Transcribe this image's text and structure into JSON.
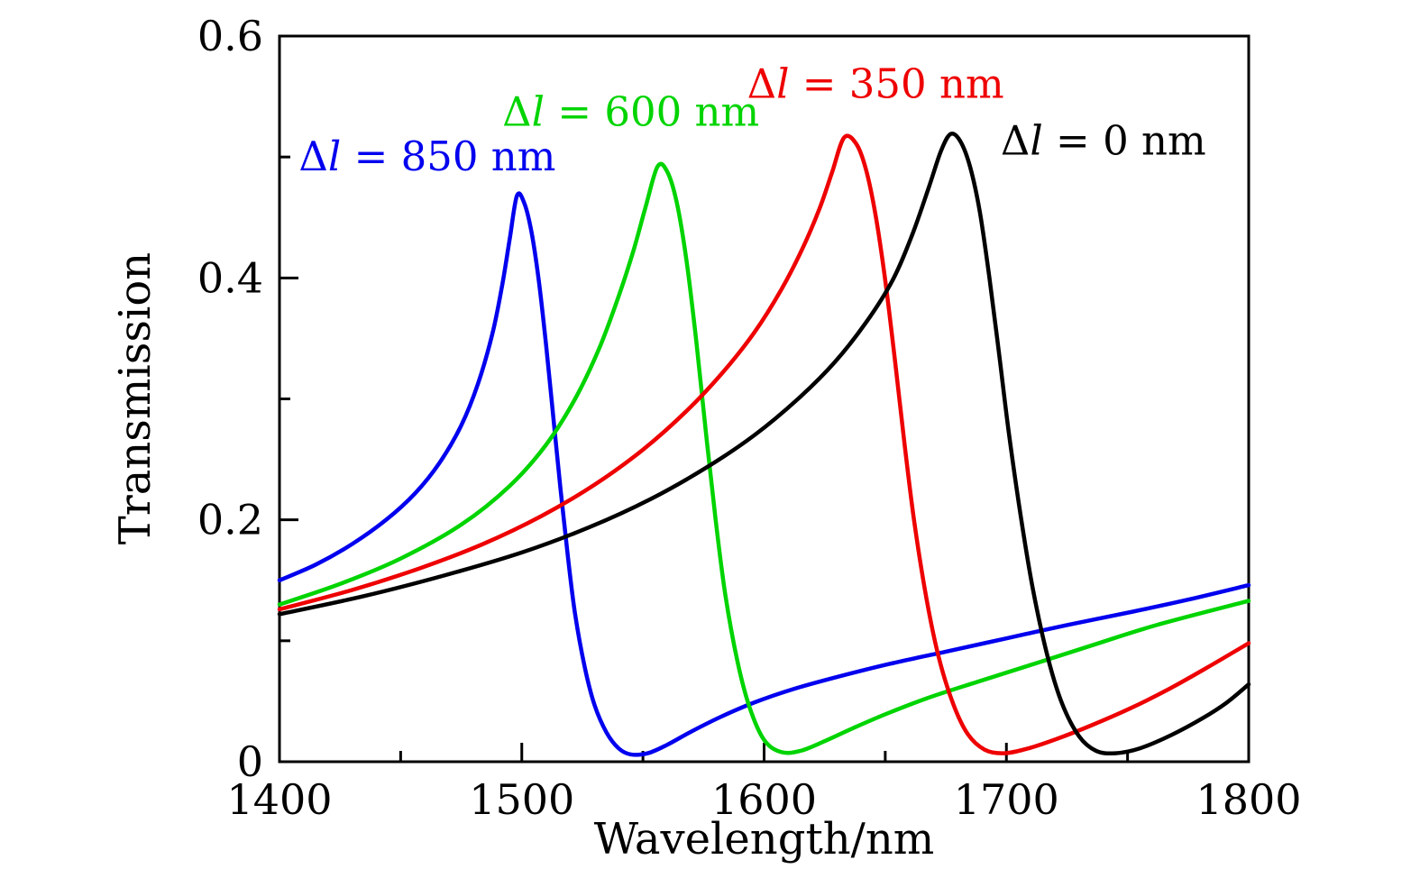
{
  "chart_data": {
    "type": "line",
    "title": "",
    "xlabel": "Wavelength/nm",
    "ylabel": "Transmission",
    "xlim": [
      1400,
      1800
    ],
    "ylim": [
      0,
      0.6
    ],
    "x_ticks": [
      1400,
      1500,
      1600,
      1700,
      1800
    ],
    "x_tick_labels": [
      "1400",
      "1500",
      "1600",
      "1700",
      "1800"
    ],
    "x_minor_ticks": [
      1450,
      1550,
      1650,
      1750
    ],
    "y_ticks": [
      0,
      0.2,
      0.4,
      0.6
    ],
    "y_tick_labels": [
      "0",
      "0.2",
      "0.4",
      "0.6"
    ],
    "y_minor_ticks": [
      0.1,
      0.3,
      0.5
    ],
    "grid": false,
    "frame": true,
    "legend_position": "inline-annotations",
    "axis_color": "#000000",
    "series": [
      {
        "name": "Δl = 850 nm",
        "color": "#0000ee",
        "label_x": 1461,
        "label_y": 0.5,
        "peak_nm": 1498,
        "dip_nm": 1545,
        "points": [
          [
            1400,
            0.15
          ],
          [
            1415,
            0.163
          ],
          [
            1430,
            0.18
          ],
          [
            1444,
            0.2
          ],
          [
            1456,
            0.222
          ],
          [
            1466,
            0.247
          ],
          [
            1475,
            0.278
          ],
          [
            1482,
            0.313
          ],
          [
            1488,
            0.355
          ],
          [
            1492,
            0.395
          ],
          [
            1495,
            0.432
          ],
          [
            1498,
            0.468
          ],
          [
            1501,
            0.462
          ],
          [
            1504,
            0.438
          ],
          [
            1507,
            0.398
          ],
          [
            1510,
            0.345
          ],
          [
            1513,
            0.285
          ],
          [
            1516,
            0.225
          ],
          [
            1519,
            0.17
          ],
          [
            1522,
            0.122
          ],
          [
            1526,
            0.078
          ],
          [
            1530,
            0.047
          ],
          [
            1535,
            0.024
          ],
          [
            1540,
            0.011
          ],
          [
            1545,
            0.006
          ],
          [
            1552,
            0.007
          ],
          [
            1560,
            0.014
          ],
          [
            1570,
            0.025
          ],
          [
            1582,
            0.037
          ],
          [
            1596,
            0.049
          ],
          [
            1612,
            0.06
          ],
          [
            1630,
            0.07
          ],
          [
            1652,
            0.081
          ],
          [
            1675,
            0.091
          ],
          [
            1700,
            0.102
          ],
          [
            1725,
            0.113
          ],
          [
            1752,
            0.124
          ],
          [
            1775,
            0.134
          ],
          [
            1800,
            0.146
          ]
        ]
      },
      {
        "name": "Δl = 600 nm",
        "color": "#00d400",
        "label_x": 1545,
        "label_y": 0.537,
        "peak_nm": 1556,
        "dip_nm": 1607,
        "points": [
          [
            1400,
            0.13
          ],
          [
            1425,
            0.147
          ],
          [
            1450,
            0.168
          ],
          [
            1475,
            0.196
          ],
          [
            1495,
            0.228
          ],
          [
            1510,
            0.262
          ],
          [
            1522,
            0.3
          ],
          [
            1532,
            0.342
          ],
          [
            1540,
            0.385
          ],
          [
            1546,
            0.422
          ],
          [
            1551,
            0.458
          ],
          [
            1556,
            0.492
          ],
          [
            1560,
            0.488
          ],
          [
            1564,
            0.462
          ],
          [
            1568,
            0.414
          ],
          [
            1572,
            0.348
          ],
          [
            1576,
            0.272
          ],
          [
            1580,
            0.2
          ],
          [
            1584,
            0.138
          ],
          [
            1589,
            0.083
          ],
          [
            1594,
            0.045
          ],
          [
            1600,
            0.018
          ],
          [
            1607,
            0.008
          ],
          [
            1615,
            0.009
          ],
          [
            1625,
            0.017
          ],
          [
            1637,
            0.028
          ],
          [
            1651,
            0.04
          ],
          [
            1668,
            0.053
          ],
          [
            1688,
            0.066
          ],
          [
            1710,
            0.08
          ],
          [
            1735,
            0.096
          ],
          [
            1762,
            0.113
          ],
          [
            1800,
            0.133
          ]
        ]
      },
      {
        "name": "Δl = 350 nm",
        "color": "#ee0000",
        "label_x": 1646,
        "label_y": 0.56,
        "peak_nm": 1633,
        "dip_nm": 1695,
        "points": [
          [
            1400,
            0.126
          ],
          [
            1430,
            0.142
          ],
          [
            1458,
            0.16
          ],
          [
            1484,
            0.18
          ],
          [
            1508,
            0.203
          ],
          [
            1530,
            0.229
          ],
          [
            1550,
            0.258
          ],
          [
            1568,
            0.29
          ],
          [
            1583,
            0.322
          ],
          [
            1596,
            0.355
          ],
          [
            1607,
            0.39
          ],
          [
            1616,
            0.425
          ],
          [
            1623,
            0.458
          ],
          [
            1628,
            0.487
          ],
          [
            1633,
            0.516
          ],
          [
            1638,
            0.511
          ],
          [
            1642,
            0.49
          ],
          [
            1646,
            0.452
          ],
          [
            1650,
            0.398
          ],
          [
            1654,
            0.332
          ],
          [
            1658,
            0.262
          ],
          [
            1662,
            0.198
          ],
          [
            1667,
            0.135
          ],
          [
            1672,
            0.087
          ],
          [
            1678,
            0.048
          ],
          [
            1684,
            0.023
          ],
          [
            1691,
            0.01
          ],
          [
            1699,
            0.007
          ],
          [
            1709,
            0.011
          ],
          [
            1721,
            0.019
          ],
          [
            1735,
            0.03
          ],
          [
            1751,
            0.044
          ],
          [
            1767,
            0.06
          ],
          [
            1783,
            0.078
          ],
          [
            1800,
            0.098
          ]
        ]
      },
      {
        "name": "Δl = 0 nm",
        "color": "#000000",
        "label_x": 1740,
        "label_y": 0.513,
        "peak_nm": 1677,
        "dip_nm": 1741,
        "points": [
          [
            1400,
            0.122
          ],
          [
            1435,
            0.137
          ],
          [
            1468,
            0.154
          ],
          [
            1500,
            0.173
          ],
          [
            1528,
            0.194
          ],
          [
            1553,
            0.217
          ],
          [
            1576,
            0.243
          ],
          [
            1596,
            0.27
          ],
          [
            1614,
            0.3
          ],
          [
            1629,
            0.33
          ],
          [
            1642,
            0.363
          ],
          [
            1653,
            0.398
          ],
          [
            1661,
            0.435
          ],
          [
            1668,
            0.475
          ],
          [
            1673,
            0.505
          ],
          [
            1677,
            0.519
          ],
          [
            1681,
            0.513
          ],
          [
            1685,
            0.492
          ],
          [
            1689,
            0.455
          ],
          [
            1693,
            0.4
          ],
          [
            1697,
            0.337
          ],
          [
            1701,
            0.272
          ],
          [
            1706,
            0.202
          ],
          [
            1711,
            0.142
          ],
          [
            1717,
            0.087
          ],
          [
            1723,
            0.048
          ],
          [
            1730,
            0.021
          ],
          [
            1737,
            0.009
          ],
          [
            1745,
            0.007
          ],
          [
            1755,
            0.011
          ],
          [
            1768,
            0.022
          ],
          [
            1781,
            0.036
          ],
          [
            1791,
            0.049
          ],
          [
            1800,
            0.064
          ]
        ]
      }
    ]
  }
}
